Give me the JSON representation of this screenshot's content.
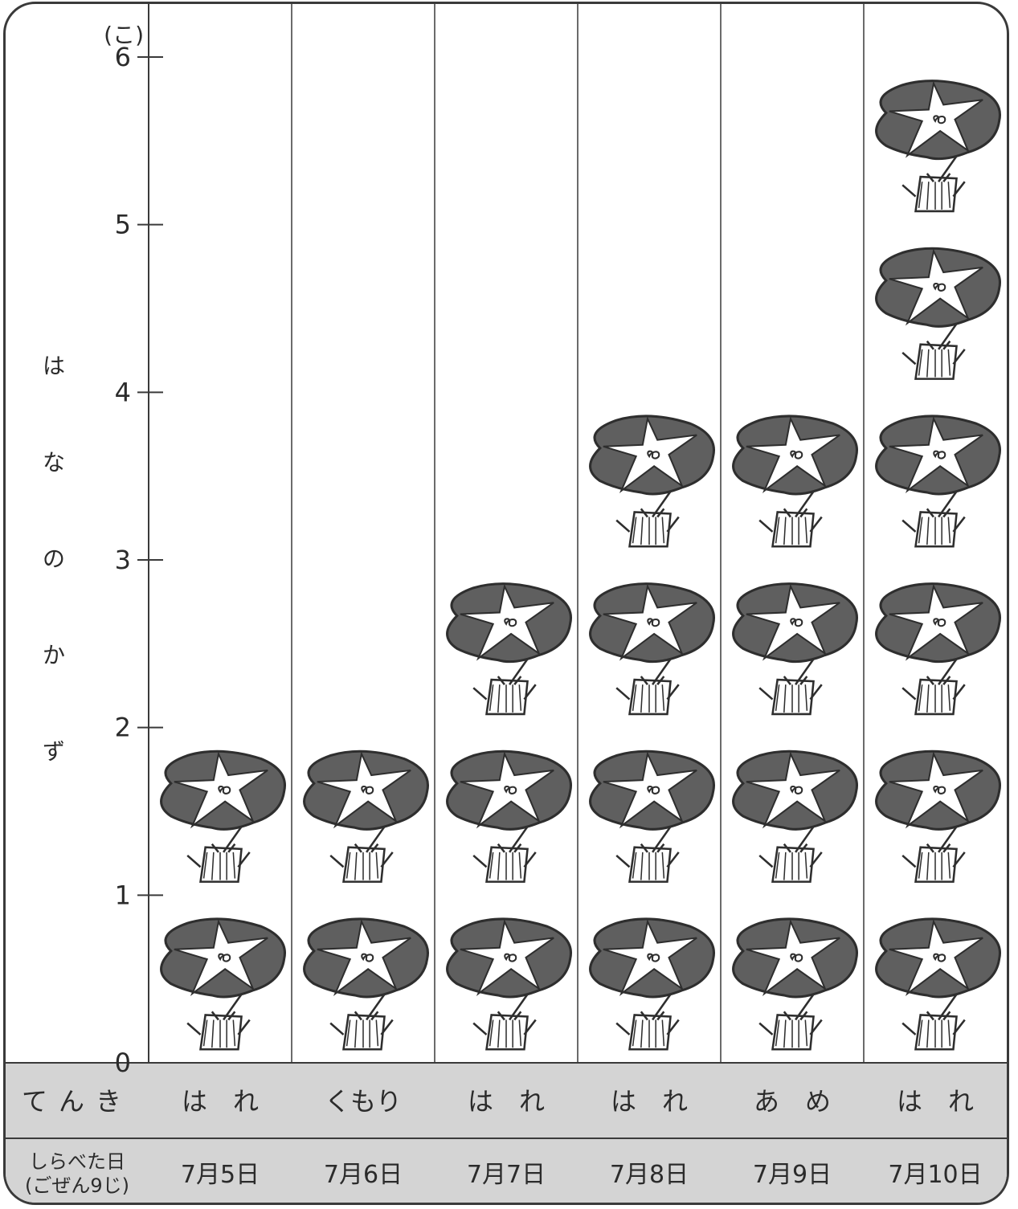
{
  "chart_data": {
    "type": "pictograph",
    "unit_label": "(こ)",
    "ylabel": "はなのかず",
    "ylabel_chars": [
      "は",
      "な",
      "の",
      "か",
      "ず"
    ],
    "yticks": [
      "0",
      "1",
      "2",
      "3",
      "4",
      "5",
      "6"
    ],
    "ylim": [
      0,
      6
    ],
    "icon": "morning-glory-flower-icon",
    "categories": [
      "7月5日",
      "7月6日",
      "7月7日",
      "7月8日",
      "7月9日",
      "7月10日"
    ],
    "values": [
      2,
      2,
      3,
      4,
      4,
      6
    ],
    "rows": [
      {
        "header": "てんき",
        "cells": [
          "は　れ",
          "くもり",
          "は　れ",
          "は　れ",
          "あ　め",
          "は　れ"
        ]
      },
      {
        "header_line1": "しらべた日",
        "header_line2": "(ごぜん9じ)",
        "cells": [
          "7月5日",
          "7月6日",
          "7月7日",
          "7月8日",
          "7月9日",
          "7月10日"
        ]
      }
    ]
  },
  "colors": {
    "petal": "#5f5f5f",
    "star": "#ffffff",
    "stroke": "#2e2e2e",
    "table_bg": "#d4d4d4",
    "grid": "#3a3a3a"
  }
}
